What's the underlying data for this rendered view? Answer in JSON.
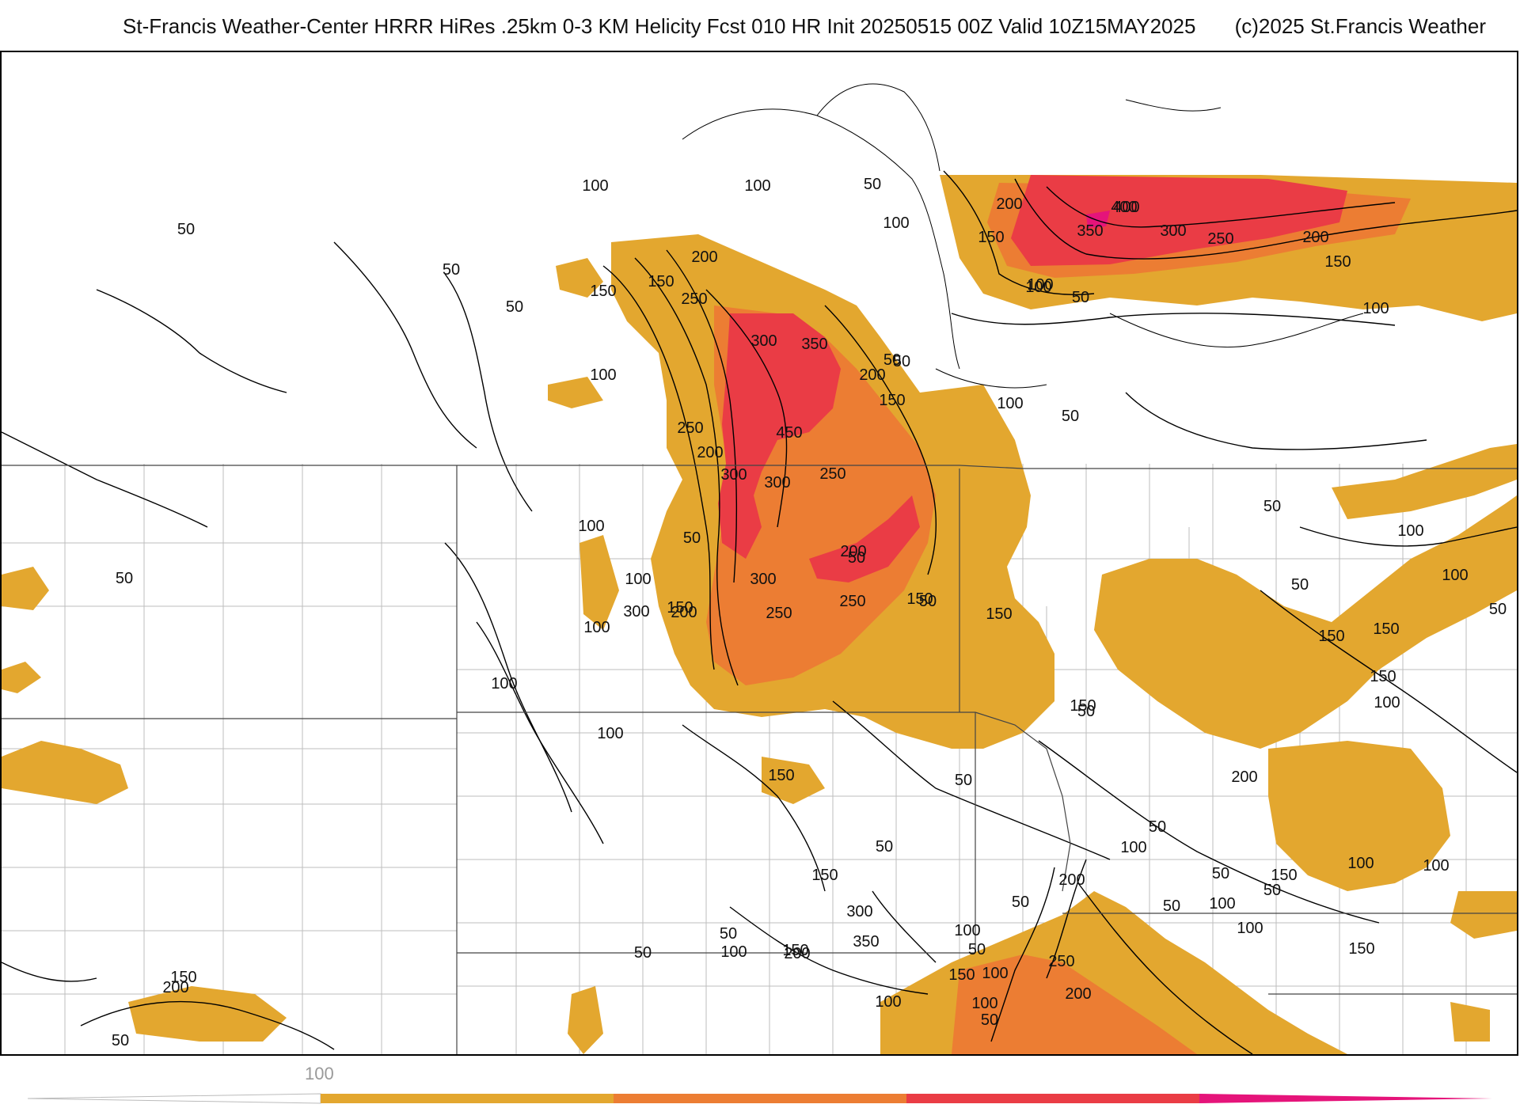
{
  "header": {
    "title": "St-Francis Weather-Center HRRR HiRes .25km 0-3 KM Helicity Fcst 010 HR Init 20250515 00Z  Valid 10Z15MAY2025",
    "credit": "(c)2025 St.Francis Weather"
  },
  "colors": {
    "band_100_150": "#e3a72f",
    "band_150_250": "#ec7d33",
    "band_250_350": "#ea3c45",
    "band_350_plus": "#e5147a",
    "contour_line": "#000000",
    "county_line": "#bdbdbd",
    "state_line": "#555555"
  },
  "colorbar": {
    "labels": [
      "100"
    ],
    "segments": [
      "#e3a72f",
      "#ec7d33",
      "#ea3c45",
      "#e5147a"
    ]
  },
  "contour_labels": [
    "100",
    "100",
    "50",
    "100",
    "50",
    "50",
    "50",
    "200",
    "150",
    "150",
    "250",
    "50",
    "100",
    "300",
    "350",
    "200",
    "50",
    "200",
    "400",
    "350",
    "300",
    "250",
    "200",
    "150",
    "150",
    "100",
    "50",
    "100",
    "100",
    "50",
    "400",
    "150",
    "100",
    "250",
    "450",
    "200",
    "300",
    "250",
    "300",
    "50",
    "100",
    "50",
    "50",
    "100",
    "150",
    "300",
    "250",
    "200",
    "50",
    "150",
    "150",
    "50",
    "150",
    "100",
    "200",
    "250",
    "100",
    "150",
    "300",
    "100",
    "50",
    "150",
    "100",
    "50",
    "150",
    "100",
    "100",
    "150",
    "200",
    "50",
    "100",
    "50",
    "50",
    "50",
    "100",
    "100",
    "150",
    "100",
    "150",
    "50",
    "50",
    "100",
    "50",
    "100",
    "50",
    "50",
    "200",
    "250",
    "150",
    "100",
    "50",
    "100",
    "200",
    "100",
    "150",
    "300",
    "350",
    "150",
    "50",
    "200",
    "100",
    "150",
    "200",
    "50",
    "50",
    "100",
    "50"
  ]
}
